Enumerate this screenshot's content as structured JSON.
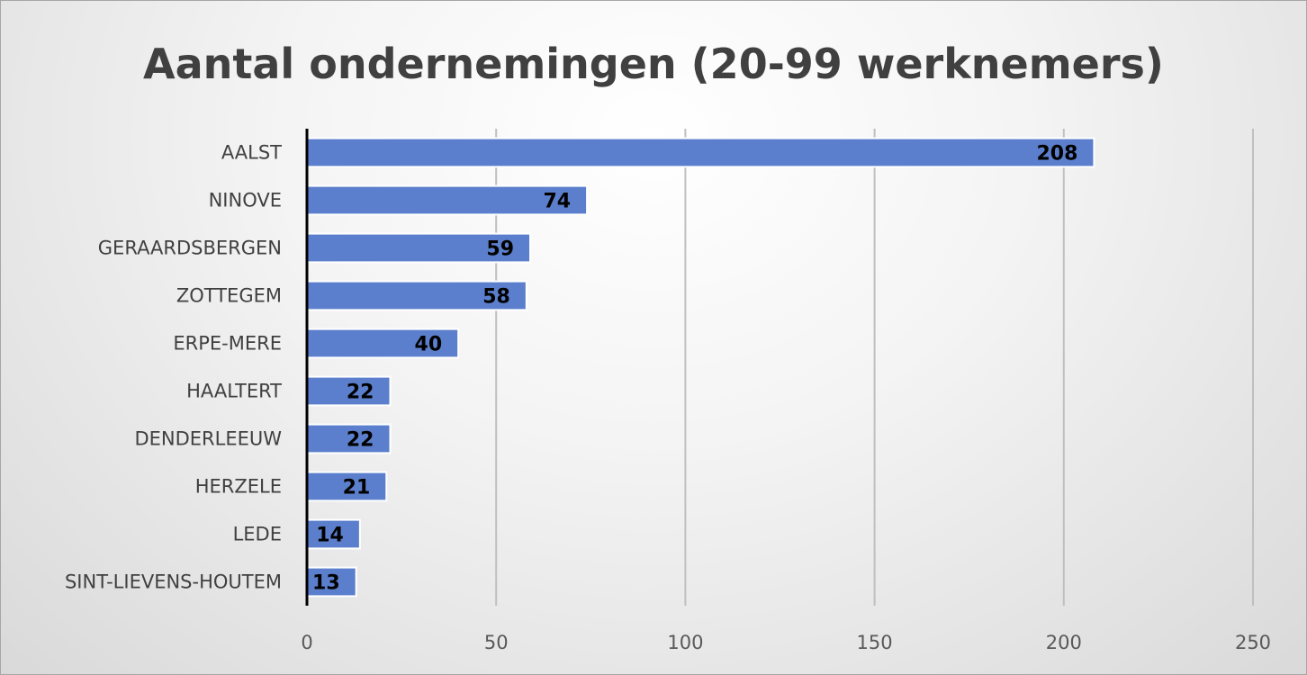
{
  "chart_data": {
    "type": "bar",
    "orientation": "horizontal",
    "title": "Aantal ondernemingen (20-99 werknemers)",
    "categories": [
      "AALST",
      "NINOVE",
      "GERAARDSBERGEN",
      "ZOTTEGEM",
      "ERPE-MERE",
      "HAALTERT",
      "DENDERLEEUW",
      "HERZELE",
      "LEDE",
      "SINT-LIEVENS-HOUTEM"
    ],
    "values": [
      208,
      74,
      59,
      58,
      40,
      22,
      22,
      21,
      14,
      13
    ],
    "data_labels": [
      "208",
      "74",
      "59",
      "58",
      "40",
      "22",
      "22",
      "21",
      "14",
      "13"
    ],
    "xlim": [
      0,
      250
    ],
    "xticks": [
      0,
      50,
      100,
      150,
      200,
      250
    ],
    "xtick_labels": [
      "0",
      "50",
      "100",
      "150",
      "200",
      "250"
    ],
    "xlabel": "",
    "ylabel": "",
    "grid": true,
    "legend": "none",
    "bar_color": "#5b7fcc"
  }
}
